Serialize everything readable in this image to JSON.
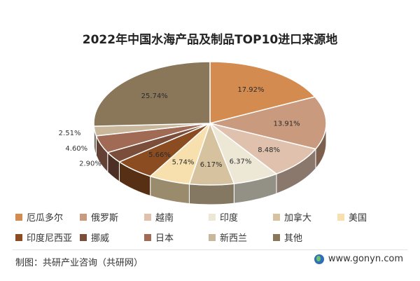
{
  "chart_data": {
    "type": "pie",
    "title": "2022年中国水海产品及制品TOP10进口来源地",
    "slices": [
      {
        "name": "厄瓜多尔",
        "label": "17.92%",
        "value": 17.92,
        "color": "#d38b4f"
      },
      {
        "name": "俄罗斯",
        "label": "13.91%",
        "value": 13.91,
        "color": "#c99a7e"
      },
      {
        "name": "越南",
        "label": "8.48%",
        "value": 8.48,
        "color": "#dfc1ae"
      },
      {
        "name": "印度",
        "label": "6.37%",
        "value": 6.37,
        "color": "#ede8d6"
      },
      {
        "name": "加拿大",
        "label": "6.17%",
        "value": 6.17,
        "color": "#d7c29f"
      },
      {
        "name": "美国",
        "label": "5.74%",
        "value": 5.74,
        "color": "#f7e0ae"
      },
      {
        "name": "印度尼西亚",
        "label": "5.66%",
        "value": 5.66,
        "color": "#8c4c22"
      },
      {
        "name": "挪威",
        "label": "2.90%",
        "value": 2.9,
        "color": "#7b4e3b"
      },
      {
        "name": "日本",
        "label": "4.60%",
        "value": 4.6,
        "color": "#a06a55"
      },
      {
        "name": "新西兰",
        "label": "2.51%",
        "value": 2.51,
        "color": "#c8b79a"
      },
      {
        "name": "其他",
        "label": "25.74%",
        "value": 25.74,
        "color": "#8a7658"
      }
    ],
    "legend_placement": "bottom"
  },
  "footer": {
    "source": "制图：共研产业咨询（共研网）",
    "website": "www.gonyn.com"
  }
}
